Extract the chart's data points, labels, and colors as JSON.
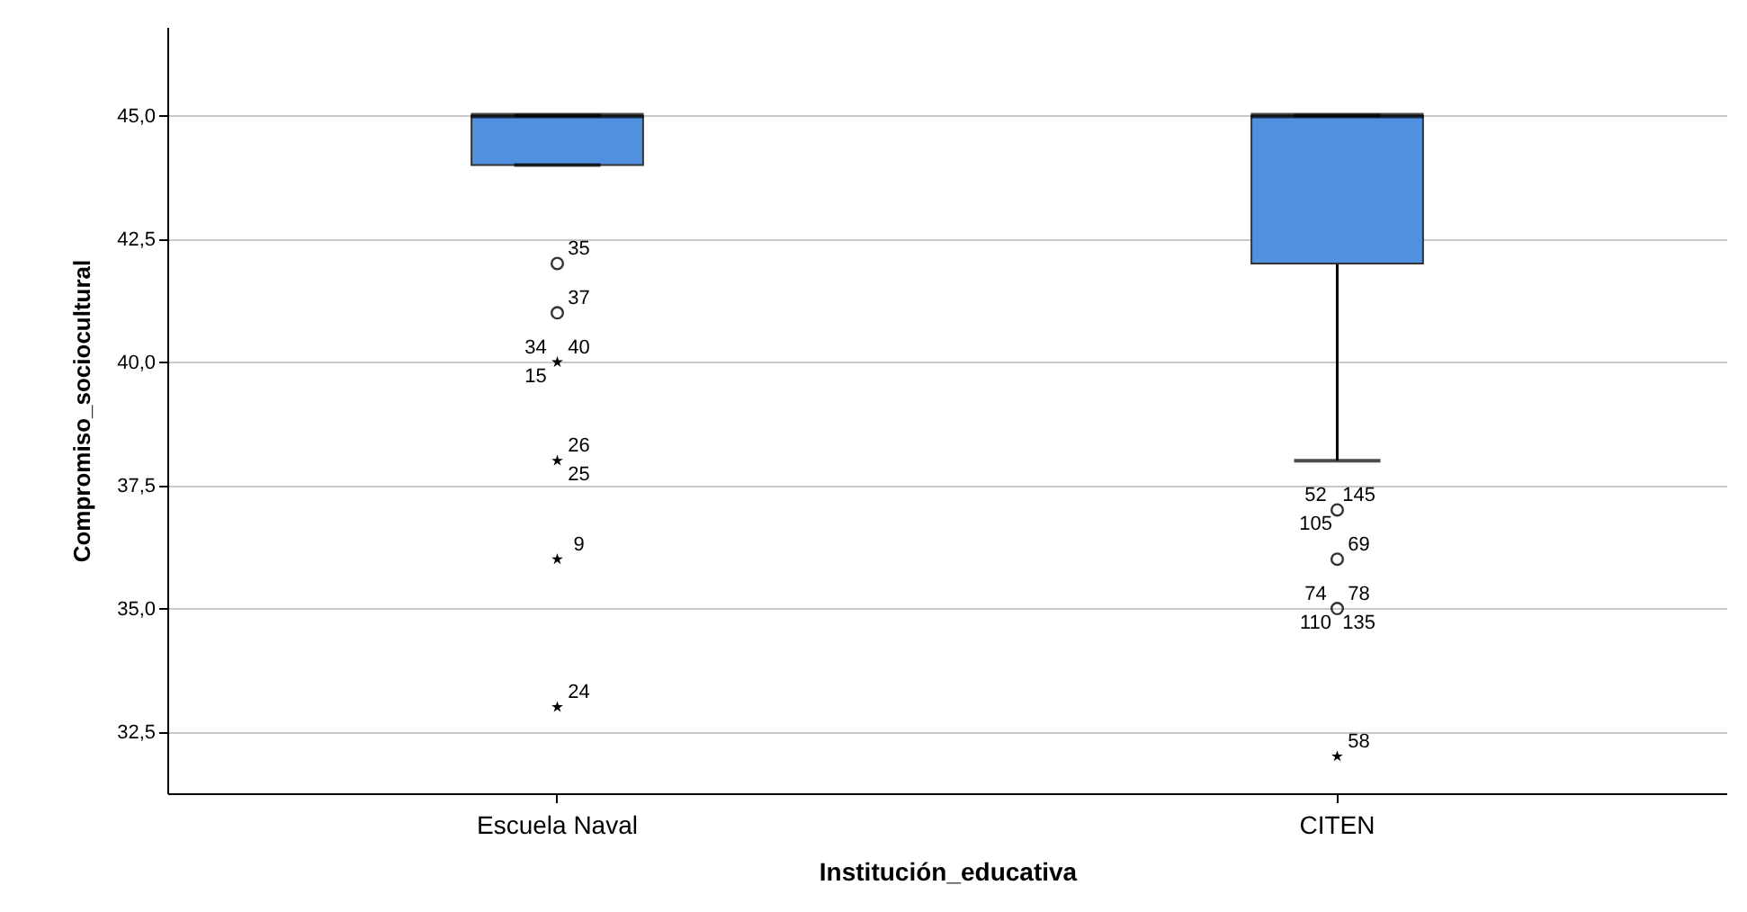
{
  "chart_data": {
    "type": "box",
    "xlabel": "Institución_educativa",
    "ylabel": "Compromiso_sociocultural",
    "categories": [
      "Escuela Naval",
      "CITEN"
    ],
    "ylim": [
      31.25,
      46.8
    ],
    "yticks": [
      {
        "value": 32.5,
        "label": "32,5"
      },
      {
        "value": 35,
        "label": "35,0"
      },
      {
        "value": 37.5,
        "label": "37,5"
      },
      {
        "value": 40,
        "label": "40,0"
      },
      {
        "value": 42.5,
        "label": "42,5"
      },
      {
        "value": 45,
        "label": "45,0"
      }
    ],
    "grid": "y",
    "series": [
      {
        "color": "#5091e0",
        "boxes": [
          {
            "low": 44,
            "q1": 44,
            "median": 45,
            "q3": 45,
            "high": 45
          },
          {
            "low": 38,
            "q1": 42,
            "median": 45,
            "q3": 45,
            "high": 45
          }
        ]
      },
      {
        "type": "scatter",
        "marker": "circle",
        "color": "#333333",
        "x": [
          "Escuela Naval",
          "Escuela Naval",
          "CITEN",
          "CITEN",
          "CITEN"
        ],
        "values": [
          42,
          41,
          37,
          36,
          35
        ]
      },
      {
        "type": "scatter",
        "marker": "star",
        "color": "#000000",
        "x": [
          "Escuela Naval",
          "Escuela Naval",
          "Escuela Naval",
          "Escuela Naval",
          "CITEN"
        ],
        "values": [
          40,
          38,
          36,
          33,
          32
        ]
      }
    ],
    "annotations": [
      {
        "text": "35",
        "x": "Escuela Naval",
        "y": 42
      },
      {
        "text": "37",
        "x": "Escuela Naval",
        "y": 41
      },
      {
        "text": "34",
        "x": "Escuela Naval",
        "y": 40
      },
      {
        "text": "40",
        "x": "Escuela Naval",
        "y": 40
      },
      {
        "text": "15",
        "x": "Escuela Naval",
        "y": 40
      },
      {
        "text": "26",
        "x": "Escuela Naval",
        "y": 38
      },
      {
        "text": "25",
        "x": "Escuela Naval",
        "y": 38
      },
      {
        "text": "9",
        "x": "Escuela Naval",
        "y": 36
      },
      {
        "text": "24",
        "x": "Escuela Naval",
        "y": 33
      },
      {
        "text": "52",
        "x": "CITEN",
        "y": 37
      },
      {
        "text": "145",
        "x": "CITEN",
        "y": 37
      },
      {
        "text": "105",
        "x": "CITEN",
        "y": 37
      },
      {
        "text": "69",
        "x": "CITEN",
        "y": 36
      },
      {
        "text": "74",
        "x": "CITEN",
        "y": 35
      },
      {
        "text": "78",
        "x": "CITEN",
        "y": 35
      },
      {
        "text": "110",
        "x": "CITEN",
        "y": 35
      },
      {
        "text": "135",
        "x": "CITEN",
        "y": 35
      },
      {
        "text": "58",
        "x": "CITEN",
        "y": 32
      }
    ]
  }
}
